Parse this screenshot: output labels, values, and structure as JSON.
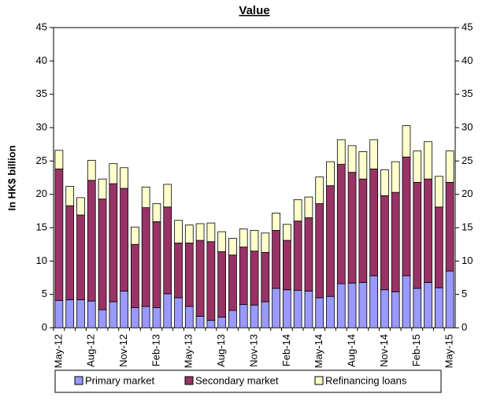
{
  "chart_data": {
    "type": "stacked-bar",
    "title": "Value",
    "y_label": "In HK$ billion",
    "categories": [
      "May-12",
      null,
      null,
      "Aug-12",
      null,
      null,
      "Nov-12",
      null,
      null,
      "Feb-13",
      null,
      null,
      "May-13",
      null,
      null,
      "Aug-13",
      null,
      null,
      "Nov-13",
      null,
      null,
      "Feb-14",
      null,
      null,
      "May-14",
      null,
      null,
      "Aug-14",
      null,
      null,
      "Nov-14",
      null,
      null,
      "Feb-15",
      null,
      null,
      "May-15"
    ],
    "series": [
      {
        "name": "Primary market",
        "color": "#9999ff",
        "values": [
          4.1,
          4.2,
          4.2,
          4.0,
          2.7,
          3.9,
          5.5,
          3.0,
          3.2,
          3.0,
          5.1,
          4.5,
          3.2,
          1.7,
          1.1,
          1.6,
          2.6,
          3.5,
          3.4,
          3.9,
          5.9,
          5.7,
          5.6,
          5.5,
          4.5,
          4.7,
          6.6,
          6.7,
          6.8,
          7.8,
          5.7,
          5.4,
          7.8,
          5.9,
          6.8,
          6.0,
          8.5
        ]
      },
      {
        "name": "Secondary market",
        "color": "#993366",
        "values": [
          19.7,
          14.1,
          12.7,
          18.1,
          16.6,
          17.7,
          15.4,
          9.5,
          14.8,
          12.9,
          13.0,
          8.2,
          9.5,
          11.4,
          11.8,
          9.8,
          8.3,
          8.6,
          8.1,
          7.4,
          8.7,
          7.4,
          10.4,
          11.0,
          14.1,
          16.6,
          17.9,
          16.6,
          15.5,
          16.0,
          14.1,
          14.9,
          17.8,
          15.9,
          15.5,
          12.1,
          13.3
        ]
      },
      {
        "name": "Refinancing loans",
        "color": "#ffffcc",
        "values": [
          2.8,
          2.9,
          2.6,
          3.0,
          3.0,
          3.0,
          3.1,
          2.6,
          3.1,
          2.7,
          3.4,
          3.4,
          2.7,
          2.5,
          2.8,
          3.0,
          2.5,
          2.7,
          3.1,
          2.9,
          2.6,
          2.4,
          3.2,
          3.1,
          4.0,
          3.6,
          3.7,
          4.0,
          4.1,
          4.4,
          3.9,
          4.6,
          4.7,
          4.7,
          5.6,
          4.6,
          4.7
        ]
      }
    ],
    "ylim": [
      0,
      45
    ],
    "yticks": [
      0,
      5,
      10,
      15,
      20,
      25,
      30,
      35,
      40,
      45
    ],
    "y2lim": [
      0,
      45
    ],
    "y2ticks": [
      0,
      5,
      10,
      15,
      20,
      25,
      30,
      35,
      40,
      45
    ],
    "legend": "bottom"
  }
}
